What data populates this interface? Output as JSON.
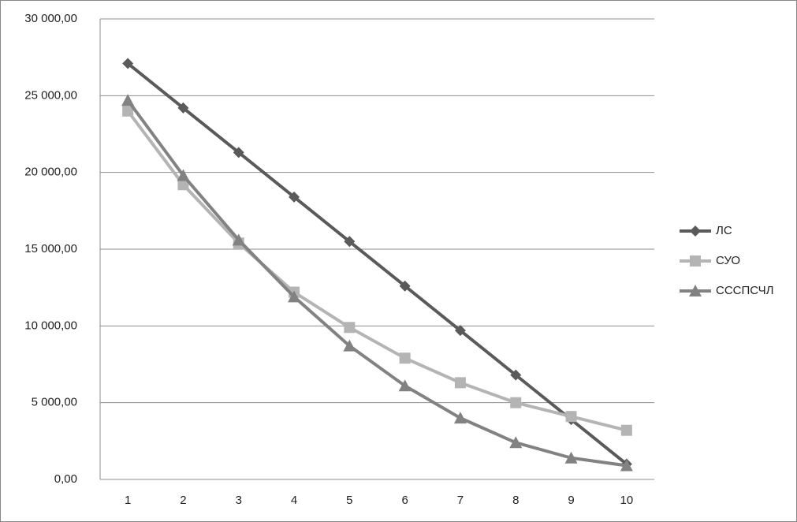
{
  "chart_data": {
    "type": "line",
    "categories": [
      "1",
      "2",
      "3",
      "4",
      "5",
      "6",
      "7",
      "8",
      "9",
      "10"
    ],
    "series": [
      {
        "name": "ЛС",
        "color": "#5a5a5a",
        "marker": "diamond",
        "values": [
          27100,
          24200,
          21300,
          18400,
          15500,
          12600,
          9700,
          6800,
          3900,
          1000
        ]
      },
      {
        "name": "СУО",
        "color": "#b4b4b4",
        "marker": "square",
        "values": [
          24000,
          19200,
          15400,
          12200,
          9900,
          7900,
          6300,
          5000,
          4100,
          3200
        ]
      },
      {
        "name": "СССПСЧЛ",
        "color": "#828282",
        "marker": "triangle",
        "values": [
          24700,
          19800,
          15600,
          11900,
          8700,
          6100,
          4000,
          2400,
          1400,
          900
        ]
      }
    ],
    "ylim": [
      0,
      30000
    ],
    "yticks": [
      {
        "value": 0,
        "label": "0,00"
      },
      {
        "value": 5000,
        "label": "5 000,00"
      },
      {
        "value": 10000,
        "label": "10 000,00"
      },
      {
        "value": 15000,
        "label": "15 000,00"
      },
      {
        "value": 20000,
        "label": "20 000,00"
      },
      {
        "value": 25000,
        "label": "25 000,00"
      },
      {
        "value": 30000,
        "label": "30 000,00"
      }
    ],
    "grid": true,
    "legend": "right"
  }
}
